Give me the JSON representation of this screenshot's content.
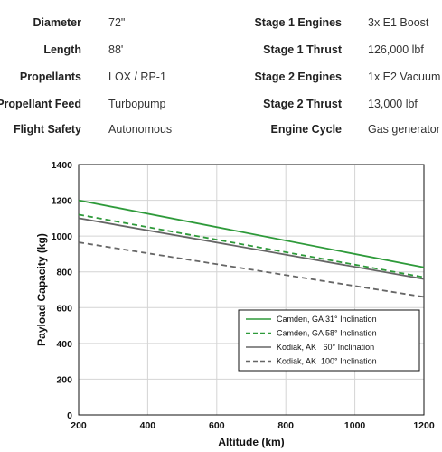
{
  "specs": {
    "left": [
      {
        "label": "Diameter",
        "value": "72\""
      },
      {
        "label": "Length",
        "value": "88'"
      },
      {
        "label": "Propellants",
        "value": "LOX / RP-1"
      },
      {
        "label": "Propellant Feed",
        "value": "Turbopump"
      },
      {
        "label": "Flight Safety",
        "value": "Autonomous"
      }
    ],
    "right": [
      {
        "label": "Stage 1 Engines",
        "value": "3x E1 Boost"
      },
      {
        "label": "Stage 1 Thrust",
        "value": "126,000 lbf"
      },
      {
        "label": "Stage 2 Engines",
        "value": "1x E2 Vacuum"
      },
      {
        "label": "Stage 2 Thrust",
        "value": "13,000 lbf"
      },
      {
        "label": "Engine Cycle",
        "value": "Gas generator"
      }
    ]
  },
  "chart_data": {
    "type": "line",
    "title": "",
    "xlabel": "Altitude (km)",
    "ylabel": "Payload Capacity (kg)",
    "xlim": [
      200,
      1200
    ],
    "ylim": [
      0,
      1400
    ],
    "xticks": [
      200,
      400,
      600,
      800,
      1000,
      1200
    ],
    "yticks": [
      0,
      200,
      400,
      600,
      800,
      1000,
      1200,
      1400
    ],
    "grid": true,
    "legend_position": "lower-right",
    "series": [
      {
        "name": "Camden, GA 31° Inclination",
        "color": "#2e9a3a",
        "style": "solid",
        "x": [
          200,
          1200
        ],
        "y": [
          1200,
          825
        ]
      },
      {
        "name": "Camden, GA 58° Inclination",
        "color": "#2e9a3a",
        "style": "dashed",
        "x": [
          200,
          1200
        ],
        "y": [
          1120,
          770
        ]
      },
      {
        "name": "Kodiak, AK   60° Inclination",
        "color": "#666666",
        "style": "solid",
        "x": [
          200,
          1200
        ],
        "y": [
          1100,
          760
        ]
      },
      {
        "name": "Kodiak, AK  100° Inclination",
        "color": "#666666",
        "style": "dashed",
        "x": [
          200,
          1200
        ],
        "y": [
          965,
          660
        ]
      }
    ]
  }
}
